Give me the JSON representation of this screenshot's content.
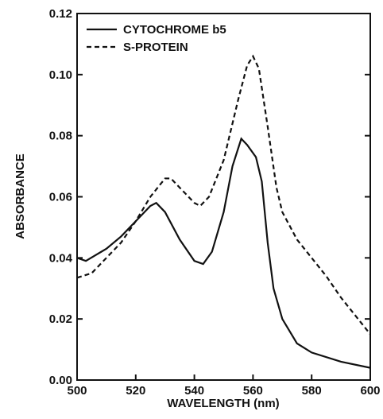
{
  "chart_data": {
    "type": "line",
    "xlabel": "WAVELENGTH (nm)",
    "ylabel": "ABSORBANCE",
    "xlim": [
      500,
      600
    ],
    "ylim": [
      0,
      0.12
    ],
    "xticks": [
      500,
      520,
      540,
      560,
      580,
      600
    ],
    "yticks": [
      {
        "value": 0,
        "label": "0.00"
      },
      {
        "value": 0.02,
        "label": "0.02"
      },
      {
        "value": 0.04,
        "label": "0.04"
      },
      {
        "value": 0.06,
        "label": "0.06"
      },
      {
        "value": 0.08,
        "label": "0.08"
      },
      {
        "value": 0.1,
        "label": "0.10"
      },
      {
        "value": 0.12,
        "label": "0.12"
      }
    ],
    "legend": "upper left",
    "series": [
      {
        "name": "CYTOCHROME b5",
        "color": "#111111",
        "dash": "solid",
        "x": [
          500,
          503,
          510,
          515,
          520,
          525,
          527,
          530,
          535,
          540,
          543,
          546,
          550,
          553,
          556,
          558,
          561,
          563,
          565,
          567,
          570,
          575,
          580,
          590,
          600
        ],
        "values": [
          0.04,
          0.039,
          0.043,
          0.047,
          0.052,
          0.057,
          0.058,
          0.055,
          0.046,
          0.039,
          0.038,
          0.042,
          0.055,
          0.07,
          0.079,
          0.077,
          0.073,
          0.065,
          0.045,
          0.03,
          0.02,
          0.012,
          0.009,
          0.006,
          0.004
        ]
      },
      {
        "name": "S-PROTEIN",
        "color": "#111111",
        "dash": "dashed",
        "x": [
          500,
          505,
          510,
          515,
          520,
          525,
          530,
          532,
          535,
          540,
          542,
          545,
          550,
          555,
          558,
          560,
          562,
          565,
          568,
          570,
          575,
          580,
          585,
          590,
          595,
          600
        ],
        "values": [
          0.0335,
          0.035,
          0.04,
          0.045,
          0.052,
          0.06,
          0.066,
          0.066,
          0.063,
          0.058,
          0.057,
          0.06,
          0.072,
          0.092,
          0.103,
          0.106,
          0.102,
          0.083,
          0.063,
          0.055,
          0.046,
          0.04,
          0.034,
          0.027,
          0.021,
          0.015
        ]
      }
    ]
  }
}
